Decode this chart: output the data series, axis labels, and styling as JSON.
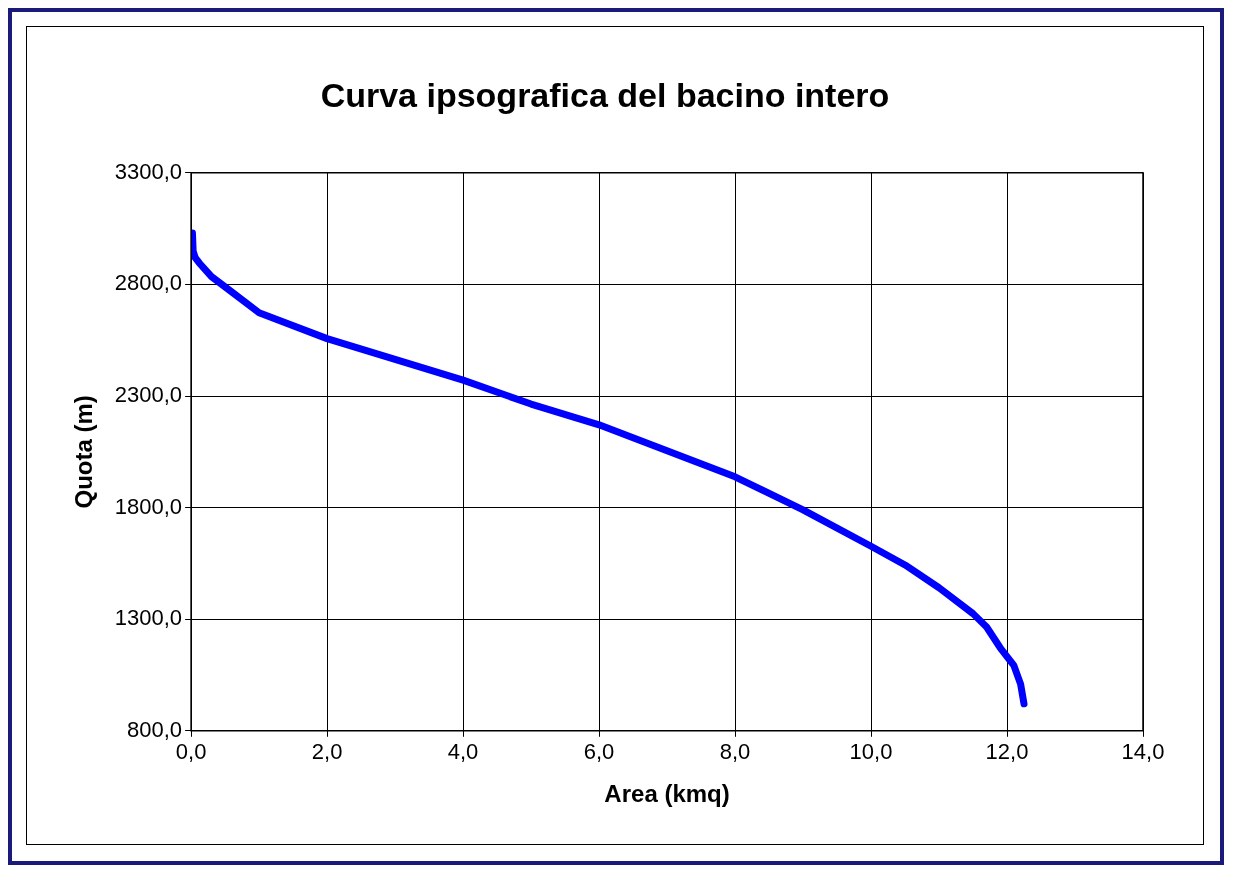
{
  "chart_data": {
    "type": "line",
    "title": "Curva ipsografica del bacino intero",
    "xlabel": "Area (kmq)",
    "ylabel": "Quota (m)",
    "series": [
      {
        "color": "#0000ff",
        "x": [
          0.02,
          0.03,
          0.06,
          0.12,
          0.3,
          0.5,
          1.0,
          2.0,
          3.0,
          4.0,
          5.0,
          6.0,
          7.0,
          8.0,
          9.0,
          10.0,
          10.5,
          11.0,
          11.5,
          11.7,
          11.9,
          12.1,
          12.2,
          12.25
        ],
        "values": [
          3030,
          2950,
          2920,
          2896,
          2835,
          2789,
          2673,
          2557,
          2464,
          2371,
          2264,
          2171,
          2055,
          1938,
          1790,
          1627,
          1543,
          1441,
          1325,
          1265,
          1172,
          1093,
          1009,
          921
        ]
      }
    ],
    "xlim": [
      0,
      14
    ],
    "xticks": [
      {
        "value": 0,
        "label": "0,0"
      },
      {
        "value": 2,
        "label": "2,0"
      },
      {
        "value": 4,
        "label": "4,0"
      },
      {
        "value": 6,
        "label": "6,0"
      },
      {
        "value": 8,
        "label": "8,0"
      },
      {
        "value": 10,
        "label": "10,0"
      },
      {
        "value": 12,
        "label": "12,0"
      },
      {
        "value": 14,
        "label": "14,0"
      }
    ],
    "ylim": [
      800,
      3300
    ],
    "yticks": [
      {
        "value": 800,
        "label": "800,0"
      },
      {
        "value": 1300,
        "label": "1300,0"
      },
      {
        "value": 1800,
        "label": "1800,0"
      },
      {
        "value": 2300,
        "label": "2300,0"
      },
      {
        "value": 2800,
        "label": "2800,0"
      },
      {
        "value": 3300,
        "label": "3300,0"
      }
    ],
    "grid": true,
    "legend": false,
    "marker": "none",
    "line_style": "solid"
  }
}
